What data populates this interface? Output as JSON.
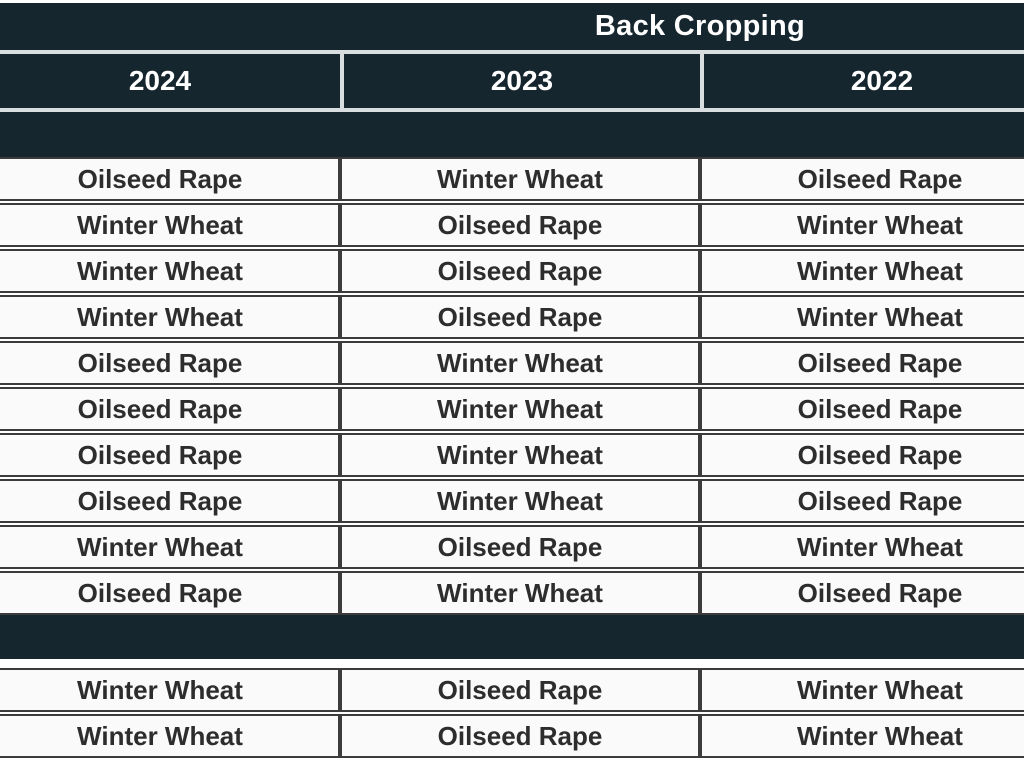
{
  "theme": {
    "dark_band": "#16262f",
    "light_divider": "#d8dde0",
    "row_background": "#fafafa",
    "row_border": "#3b3b3b",
    "cell_text": "#2d2d2d",
    "header_text": "#ffffff",
    "page_background": "#ffffff"
  },
  "table": {
    "title": "Back Cropping",
    "columns": [
      "2024",
      "2023",
      "2022"
    ],
    "groups": [
      {
        "rows": [
          [
            "Oilseed Rape",
            "Winter Wheat",
            "Oilseed Rape"
          ],
          [
            "Winter Wheat",
            "Oilseed Rape",
            "Winter Wheat"
          ],
          [
            "Winter Wheat",
            "Oilseed Rape",
            "Winter Wheat"
          ],
          [
            "Winter Wheat",
            "Oilseed Rape",
            "Winter Wheat"
          ],
          [
            "Oilseed Rape",
            "Winter Wheat",
            "Oilseed Rape"
          ],
          [
            "Oilseed Rape",
            "Winter Wheat",
            "Oilseed Rape"
          ],
          [
            "Oilseed Rape",
            "Winter Wheat",
            "Oilseed Rape"
          ],
          [
            "Oilseed Rape",
            "Winter Wheat",
            "Oilseed Rape"
          ],
          [
            "Winter Wheat",
            "Oilseed Rape",
            "Winter Wheat"
          ],
          [
            "Oilseed Rape",
            "Winter Wheat",
            "Oilseed Rape"
          ]
        ]
      },
      {
        "rows": [
          [
            "Winter Wheat",
            "Oilseed Rape",
            "Winter Wheat"
          ],
          [
            "Winter Wheat",
            "Oilseed Rape",
            "Winter Wheat"
          ]
        ]
      }
    ]
  }
}
